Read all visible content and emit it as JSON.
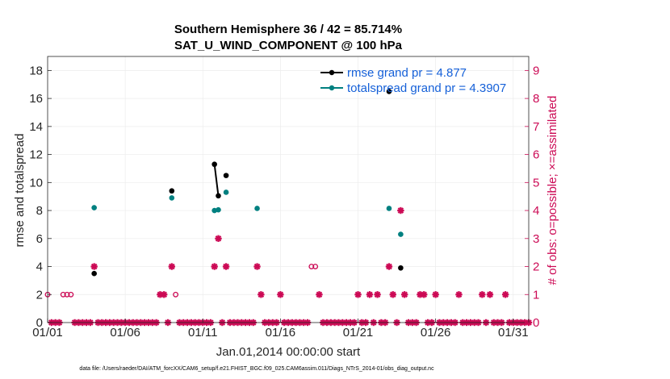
{
  "chart_data": {
    "type": "scatter",
    "title": "Southern Hemisphere 36 / 42 = 85.714%",
    "subtitle": "SAT_U_WIND_COMPONENT @ 100 hPa",
    "xlabel": "Jan.01,2014 00:00:00 start",
    "ylabel": "rmse and totalspread",
    "ylabel_right": "# of obs: o=possible; ×=assimilated",
    "footer": "data file: /Users/raeder/DAI/ATM_forcXX/CAM6_setup/f.e21.FHIST_BGC.f09_025.CAM6assim.011/Diags_NTrS_2014-01/obs_diag_output.nc",
    "x_tick_labels": [
      "01/01",
      "01/06",
      "01/11",
      "01/16",
      "01/21",
      "01/26",
      "01/31"
    ],
    "x_tick_days": [
      1,
      6,
      11,
      16,
      21,
      26,
      31
    ],
    "xlim": [
      1,
      32
    ],
    "ylim": [
      0,
      19
    ],
    "ylim_right": [
      0,
      9.5
    ],
    "y_ticks": [
      "0",
      "2",
      "4",
      "6",
      "8",
      "10",
      "12",
      "14",
      "16",
      "18"
    ],
    "y_ticks_right": [
      "0",
      "1",
      "2",
      "3",
      "4",
      "5",
      "6",
      "7",
      "8",
      "9"
    ],
    "grid": true,
    "legend_position": "top-right",
    "colors": {
      "rmse": "#000000",
      "spread": "#008080",
      "obs": "#cc0a55",
      "legend_text": "#1560d8"
    },
    "series": [
      {
        "name": "rmse grand pr = 4.877",
        "color": "#000000",
        "x": [
          4.0,
          9.0,
          11.75,
          12.0,
          12.5,
          23.0,
          23.75
        ],
        "y": [
          3.5,
          9.4,
          11.3,
          9.05,
          10.5,
          16.5,
          3.9
        ],
        "connect_pairs": [
          [
            2,
            3
          ]
        ]
      },
      {
        "name": "totalspread grand pr = 4.3907",
        "color": "#008080",
        "x": [
          4.0,
          9.0,
          11.75,
          12.0,
          12.5,
          14.5,
          23.0,
          23.75
        ],
        "y": [
          8.2,
          8.9,
          8.0,
          8.05,
          9.3,
          8.15,
          8.15,
          6.3
        ]
      }
    ],
    "obs_possible": {
      "x": [
        1.0,
        2.0,
        2.25,
        2.5,
        9.25,
        18.0,
        18.25
      ],
      "y": [
        1,
        1,
        1,
        1,
        1,
        2,
        2
      ]
    },
    "obs_assimilated": {
      "x": [
        4.0,
        8.25,
        8.5,
        9.0,
        11.75,
        12.0,
        12.5,
        14.5,
        14.75,
        16.0,
        18.5,
        21.0,
        21.75,
        22.25,
        23.0,
        23.25,
        23.75,
        24.0,
        25.0,
        25.25,
        26.0,
        27.5,
        29.0,
        29.5,
        30.5
      ],
      "y": [
        2,
        1,
        1,
        2,
        2,
        3,
        2,
        2,
        1,
        1,
        1,
        1,
        1,
        1,
        2,
        1,
        4,
        1,
        1,
        1,
        1,
        1,
        1,
        1,
        1
      ]
    },
    "zero_obs_interval_days": 0.25
  }
}
